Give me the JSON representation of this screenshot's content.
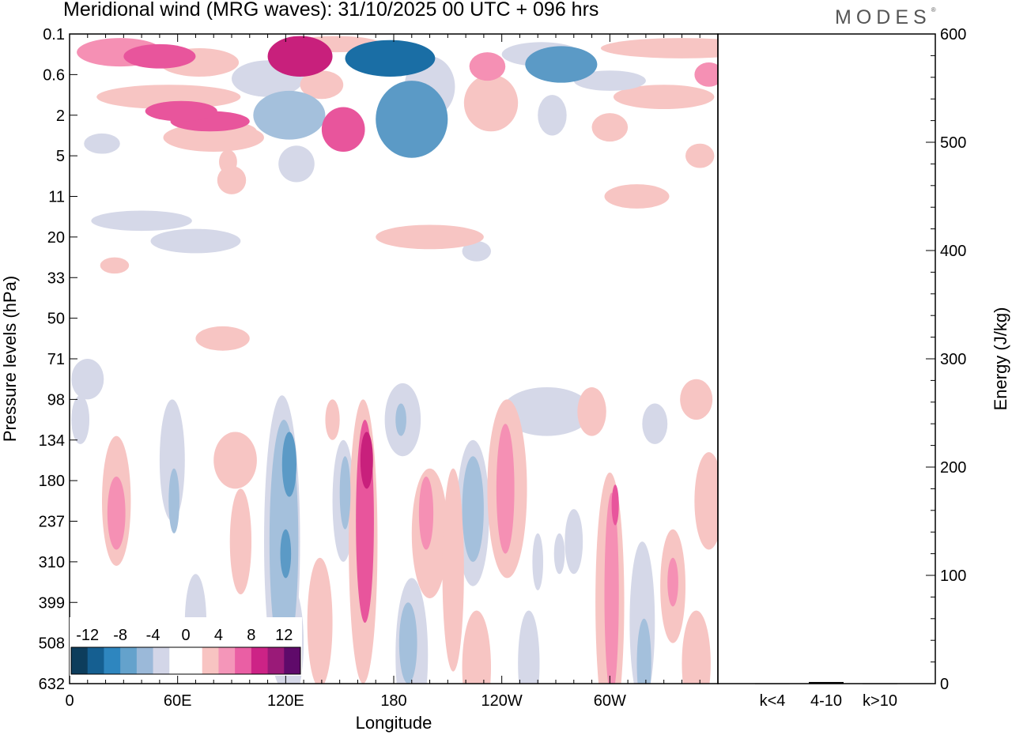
{
  "header": {
    "title": "Meridional wind (MRG waves):  31/10/2025  00 UTC  + 096 hrs",
    "logo": "MODES",
    "logo_mark": "®"
  },
  "colors": {
    "neg3": "#1a6ea5",
    "neg2": "#5b9ac6",
    "neg1": "#a4c0dc",
    "neg0": "#d5d8e8",
    "pos0": "#f7c5c3",
    "pos1": "#f590b4",
    "pos2": "#e8559c",
    "pos3": "#c8207c"
  },
  "chart_data": [
    {
      "type": "heatmap",
      "title": "Meridional wind (MRG waves):  31/10/2025  00 UTC  + 096 hrs",
      "xlabel": "Longitude",
      "ylabel": "Pressure levels (hPa)",
      "x_ticks": [
        "0",
        "60E",
        "120E",
        "180",
        "120W",
        "60W"
      ],
      "x_tick_values": [
        0,
        60,
        120,
        180,
        240,
        300
      ],
      "xlim": [
        0,
        360
      ],
      "y_ticks": [
        "0.1",
        "0.6",
        "2",
        "5",
        "11",
        "20",
        "33",
        "50",
        "71",
        "98",
        "134",
        "180",
        "237",
        "310",
        "399",
        "508",
        "632"
      ],
      "colorbar": {
        "labels": [
          "-12",
          "-8",
          "-4",
          "0",
          "4",
          "8",
          "12"
        ],
        "colors": [
          "#0d3d5c",
          "#155f91",
          "#2e86bf",
          "#64a2cc",
          "#9bb9d9",
          "#d3d6e8",
          "#ffffff",
          "#ffffff",
          "#f8c4c2",
          "#f496b9",
          "#ea5fa4",
          "#cd2386",
          "#9a1a78",
          "#5f0a6a"
        ]
      },
      "blobs": [
        {
          "lon": 28,
          "lev": 0.45,
          "rx": 24,
          "ry": 0.35,
          "v": 5
        },
        {
          "lon": 50,
          "lev": 0.55,
          "rx": 20,
          "ry": 0.3,
          "v": 7
        },
        {
          "lon": 72,
          "lev": 0.7,
          "rx": 22,
          "ry": 0.35,
          "v": 3
        },
        {
          "lon": 55,
          "lev": 1.55,
          "rx": 40,
          "ry": 0.3,
          "v": 3
        },
        {
          "lon": 62,
          "lev": 1.9,
          "rx": 20,
          "ry": 0.25,
          "v": 7
        },
        {
          "lon": 78,
          "lev": 2.15,
          "rx": 22,
          "ry": 0.25,
          "v": 6
        },
        {
          "lon": 86,
          "lev": 2.4,
          "rx": 18,
          "ry": 0.25,
          "v": 3
        },
        {
          "lon": 80,
          "lev": 2.55,
          "rx": 28,
          "ry": 0.35,
          "v": 2
        },
        {
          "lon": 88,
          "lev": 3.15,
          "rx": 5,
          "ry": 0.3,
          "v": 2
        },
        {
          "lon": 90,
          "lev": 3.6,
          "rx": 8,
          "ry": 0.35,
          "v": 2
        },
        {
          "lon": 110,
          "lev": 1.1,
          "rx": 20,
          "ry": 0.45,
          "v": -2
        },
        {
          "lon": 122,
          "lev": 2.0,
          "rx": 20,
          "ry": 0.6,
          "v": -5
        },
        {
          "lon": 126,
          "lev": 3.2,
          "rx": 10,
          "ry": 0.45,
          "v": -2
        },
        {
          "lon": 128,
          "lev": 0.55,
          "rx": 18,
          "ry": 0.5,
          "v": 9
        },
        {
          "lon": 140,
          "lev": 1.25,
          "rx": 12,
          "ry": 0.35,
          "v": 3
        },
        {
          "lon": 152,
          "lev": 2.35,
          "rx": 12,
          "ry": 0.55,
          "v": 6
        },
        {
          "lon": 148,
          "lev": 0.25,
          "rx": 25,
          "ry": 0.2,
          "v": 3
        },
        {
          "lon": 178,
          "lev": 0.6,
          "rx": 25,
          "ry": 0.45,
          "v": -10
        },
        {
          "lon": 190,
          "lev": 2.1,
          "rx": 20,
          "ry": 0.95,
          "v": -7
        },
        {
          "lon": 200,
          "lev": 1.3,
          "rx": 14,
          "ry": 0.75,
          "v": -3
        },
        {
          "lon": 232,
          "lev": 0.8,
          "rx": 10,
          "ry": 0.35,
          "v": 5
        },
        {
          "lon": 234,
          "lev": 1.7,
          "rx": 15,
          "ry": 0.7,
          "v": 2
        },
        {
          "lon": 273,
          "lev": 0.75,
          "rx": 20,
          "ry": 0.45,
          "v": -6
        },
        {
          "lon": 262,
          "lev": 0.5,
          "rx": 22,
          "ry": 0.3,
          "v": -2
        },
        {
          "lon": 340,
          "lev": 0.35,
          "rx": 45,
          "ry": 0.25,
          "v": 3
        },
        {
          "lon": 330,
          "lev": 1.55,
          "rx": 28,
          "ry": 0.3,
          "v": 2
        },
        {
          "lon": 355,
          "lev": 1.0,
          "rx": 8,
          "ry": 0.3,
          "v": 4
        },
        {
          "lon": 300,
          "lev": 1.15,
          "rx": 20,
          "ry": 0.25,
          "v": -2
        },
        {
          "lon": 268,
          "lev": 2.0,
          "rx": 8,
          "ry": 0.5,
          "v": -2
        },
        {
          "lon": 300,
          "lev": 2.3,
          "rx": 10,
          "ry": 0.35,
          "v": 2
        },
        {
          "lon": 350,
          "lev": 3.0,
          "rx": 8,
          "ry": 0.3,
          "v": 2
        },
        {
          "lon": 315,
          "lev": 4.0,
          "rx": 18,
          "ry": 0.3,
          "v": 3
        },
        {
          "lon": 18,
          "lev": 2.7,
          "rx": 10,
          "ry": 0.25,
          "v": -2
        },
        {
          "lon": 40,
          "lev": 4.6,
          "rx": 28,
          "ry": 0.25,
          "v": -2
        },
        {
          "lon": 70,
          "lev": 5.1,
          "rx": 25,
          "ry": 0.3,
          "v": -2
        },
        {
          "lon": 25,
          "lev": 5.7,
          "rx": 8,
          "ry": 0.2,
          "v": 2
        },
        {
          "lon": 200,
          "lev": 5.0,
          "rx": 30,
          "ry": 0.3,
          "v": 3
        },
        {
          "lon": 226,
          "lev": 5.35,
          "rx": 8,
          "ry": 0.25,
          "v": -2
        },
        {
          "lon": 85,
          "lev": 7.5,
          "rx": 15,
          "ry": 0.3,
          "v": 3
        },
        {
          "lon": 10,
          "lev": 8.5,
          "rx": 9,
          "ry": 0.5,
          "v": -2
        },
        {
          "lon": 26,
          "lev": 11.5,
          "rx": 8,
          "ry": 1.6,
          "v": 3
        },
        {
          "lon": 26,
          "lev": 11.8,
          "rx": 5,
          "ry": 0.9,
          "v": 5
        },
        {
          "lon": 6,
          "lev": 9.5,
          "rx": 5,
          "ry": 0.6,
          "v": -3
        },
        {
          "lon": 57,
          "lev": 10.5,
          "rx": 7,
          "ry": 1.5,
          "v": -2
        },
        {
          "lon": 58,
          "lev": 11.5,
          "rx": 3,
          "ry": 0.8,
          "v": -4
        },
        {
          "lon": 92,
          "lev": 10.5,
          "rx": 12,
          "ry": 0.7,
          "v": 3
        },
        {
          "lon": 95,
          "lev": 12.5,
          "rx": 6,
          "ry": 1.3,
          "v": 3
        },
        {
          "lon": 70,
          "lev": 14.5,
          "rx": 6,
          "ry": 1.2,
          "v": -2
        },
        {
          "lon": 118,
          "lev": 12.5,
          "rx": 10,
          "ry": 3.6,
          "v": -2
        },
        {
          "lon": 119,
          "lev": 12.5,
          "rx": 8,
          "ry": 3.0,
          "v": -5
        },
        {
          "lon": 122,
          "lev": 10.6,
          "rx": 4,
          "ry": 0.8,
          "v": -7
        },
        {
          "lon": 120,
          "lev": 12.8,
          "rx": 3,
          "ry": 0.6,
          "v": -7
        },
        {
          "lon": 122,
          "lev": 15.0,
          "rx": 8,
          "ry": 1.5,
          "v": -2
        },
        {
          "lon": 139,
          "lev": 14.5,
          "rx": 7,
          "ry": 1.6,
          "v": 3
        },
        {
          "lon": 152,
          "lev": 11.5,
          "rx": 6,
          "ry": 1.5,
          "v": -2
        },
        {
          "lon": 153,
          "lev": 11.3,
          "rx": 3,
          "ry": 0.9,
          "v": -4
        },
        {
          "lon": 163,
          "lev": 12.5,
          "rx": 8,
          "ry": 3.5,
          "v": 3
        },
        {
          "lon": 164,
          "lev": 12.0,
          "rx": 5,
          "ry": 2.5,
          "v": 6
        },
        {
          "lon": 165,
          "lev": 10.5,
          "rx": 3.5,
          "ry": 0.7,
          "v": 8
        },
        {
          "lon": 146,
          "lev": 9.5,
          "rx": 4,
          "ry": 0.5,
          "v": 2
        },
        {
          "lon": 185,
          "lev": 9.5,
          "rx": 10,
          "ry": 0.9,
          "v": -2
        },
        {
          "lon": 184,
          "lev": 9.5,
          "rx": 3,
          "ry": 0.4,
          "v": -4
        },
        {
          "lon": 200,
          "lev": 12.3,
          "rx": 10,
          "ry": 1.6,
          "v": 3
        },
        {
          "lon": 198,
          "lev": 11.8,
          "rx": 4,
          "ry": 0.9,
          "v": 5
        },
        {
          "lon": 190,
          "lev": 15.3,
          "rx": 9,
          "ry": 1.9,
          "v": -2
        },
        {
          "lon": 188,
          "lev": 15.0,
          "rx": 5,
          "ry": 1.0,
          "v": -4
        },
        {
          "lon": 213,
          "lev": 13.2,
          "rx": 6,
          "ry": 2.5,
          "v": 3
        },
        {
          "lon": 224,
          "lev": 11.8,
          "rx": 9,
          "ry": 1.8,
          "v": -2
        },
        {
          "lon": 224,
          "lev": 11.7,
          "rx": 6,
          "ry": 1.3,
          "v": -4
        },
        {
          "lon": 225,
          "lev": 12.0,
          "rx": 3,
          "ry": 0.7,
          "v": -5
        },
        {
          "lon": 243,
          "lev": 11.2,
          "rx": 11,
          "ry": 2.2,
          "v": 3
        },
        {
          "lon": 242,
          "lev": 11.2,
          "rx": 5,
          "ry": 1.6,
          "v": 5
        },
        {
          "lon": 226,
          "lev": 15.6,
          "rx": 8,
          "ry": 1.4,
          "v": 3
        },
        {
          "lon": 255,
          "lev": 15.5,
          "rx": 6,
          "ry": 1.3,
          "v": -2
        },
        {
          "lon": 265,
          "lev": 9.3,
          "rx": 25,
          "ry": 0.6,
          "v": -2
        },
        {
          "lon": 290,
          "lev": 9.3,
          "rx": 8,
          "ry": 0.6,
          "v": 3
        },
        {
          "lon": 300,
          "lev": 14.0,
          "rx": 8,
          "ry": 3.2,
          "v": 3
        },
        {
          "lon": 301,
          "lev": 13.8,
          "rx": 4,
          "ry": 2.5,
          "v": 5
        },
        {
          "lon": 303,
          "lev": 11.6,
          "rx": 2,
          "ry": 0.5,
          "v": 7
        },
        {
          "lon": 318,
          "lev": 14.5,
          "rx": 7,
          "ry": 2.0,
          "v": -2
        },
        {
          "lon": 319,
          "lev": 15.5,
          "rx": 4,
          "ry": 1.1,
          "v": -4
        },
        {
          "lon": 335,
          "lev": 13.6,
          "rx": 7,
          "ry": 1.4,
          "v": 3
        },
        {
          "lon": 335,
          "lev": 13.5,
          "rx": 3,
          "ry": 0.6,
          "v": 5
        },
        {
          "lon": 348,
          "lev": 9.0,
          "rx": 9,
          "ry": 0.5,
          "v": 3
        },
        {
          "lon": 348,
          "lev": 15.5,
          "rx": 8,
          "ry": 1.3,
          "v": 3
        },
        {
          "lon": 355,
          "lev": 11.5,
          "rx": 8,
          "ry": 1.2,
          "v": 3
        },
        {
          "lon": 325,
          "lev": 9.6,
          "rx": 7,
          "ry": 0.5,
          "v": -2
        },
        {
          "lon": 280,
          "lev": 12.5,
          "rx": 5,
          "ry": 0.8,
          "v": -2
        },
        {
          "lon": 260,
          "lev": 13.0,
          "rx": 3,
          "ry": 0.7,
          "v": -2
        },
        {
          "lon": 272,
          "lev": 12.8,
          "rx": 3,
          "ry": 0.5,
          "v": -2
        }
      ]
    },
    {
      "type": "bar",
      "ylabel": "Energy (J/kg)",
      "categories": [
        "k<4",
        "4-10",
        "k>10"
      ],
      "values": [
        0.3,
        1.5,
        0.3
      ],
      "ylim": [
        0,
        600
      ],
      "y_ticks": [
        "0",
        "100",
        "200",
        "300",
        "400",
        "500",
        "600"
      ],
      "y_tick_values": [
        0,
        100,
        200,
        300,
        400,
        500,
        600
      ]
    }
  ]
}
